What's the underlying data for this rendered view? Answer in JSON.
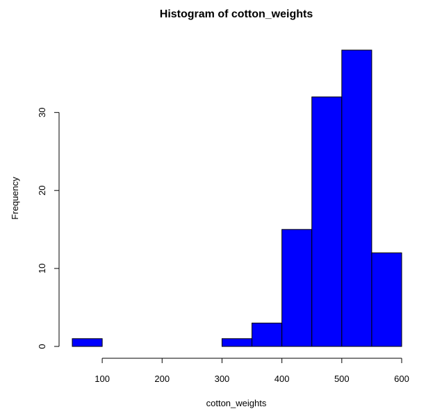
{
  "chart_data": {
    "type": "bar",
    "title": "Histogram of cotton_weights",
    "xlabel": "cotton_weights",
    "ylabel": "Frequency",
    "bins": [
      {
        "start": 50,
        "end": 100,
        "count": 1
      },
      {
        "start": 100,
        "end": 150,
        "count": 0
      },
      {
        "start": 150,
        "end": 200,
        "count": 0
      },
      {
        "start": 200,
        "end": 250,
        "count": 0
      },
      {
        "start": 250,
        "end": 300,
        "count": 0
      },
      {
        "start": 300,
        "end": 350,
        "count": 1
      },
      {
        "start": 350,
        "end": 400,
        "count": 3
      },
      {
        "start": 400,
        "end": 450,
        "count": 15
      },
      {
        "start": 450,
        "end": 500,
        "count": 32
      },
      {
        "start": 500,
        "end": 550,
        "count": 38
      },
      {
        "start": 550,
        "end": 600,
        "count": 12
      }
    ],
    "xticks": [
      100,
      200,
      300,
      400,
      500,
      600
    ],
    "yticks": [
      0,
      10,
      20,
      30
    ],
    "xlim": [
      50,
      600
    ],
    "ylim": [
      0,
      38
    ],
    "bar_color": "#0000ff",
    "bar_border_color": "#000000",
    "grid": false,
    "legend": "none"
  }
}
